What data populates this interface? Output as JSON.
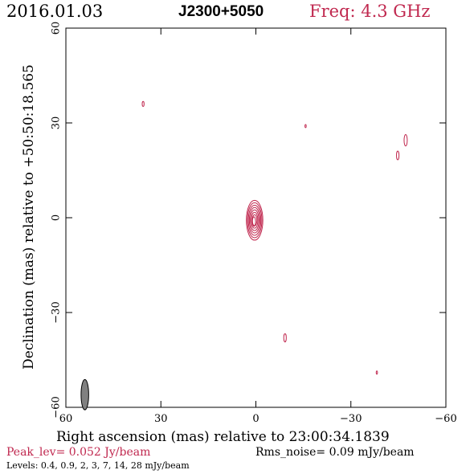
{
  "header": {
    "date": "2016.01.03",
    "source": "J2300+5050",
    "freq": "Freq: 4.3 GHz"
  },
  "footer": {
    "peak": "Peak_lev=  0.052 Jy/beam",
    "rms": "Rms_noise= 0.09  mJy/beam",
    "levels": "Levels: 0.4,  0.9,    2,    3,    7,   14,   28 mJy/beam"
  },
  "colors": {
    "accent": "#c0284f",
    "beam_fill": "#808080",
    "axis": "#000000"
  },
  "chart_data": {
    "type": "contour",
    "title": "J2300+5050",
    "xlabel": "Right ascension (mas) relative to 23:00:34.1839",
    "ylabel": "Declination (mas) relative to +50:50:18.565",
    "xlim": [
      60,
      -60
    ],
    "ylim": [
      -60,
      60
    ],
    "x_ticks": [
      60,
      30,
      0,
      -30,
      -60
    ],
    "y_ticks": [
      -60,
      -30,
      0,
      30,
      60
    ],
    "x_tick_labels": [
      "60",
      "30",
      "0",
      "−30",
      "−60"
    ],
    "y_tick_labels": [
      "−60",
      "−30",
      "0",
      "30",
      "60"
    ],
    "contour_levels_mJy": [
      0.4,
      0.9,
      2,
      3,
      7,
      14,
      28
    ],
    "components": [
      {
        "x": 0.4,
        "y": -0.8,
        "rx": 2.6,
        "ry": 6.3,
        "levels": 7
      },
      {
        "x": 0.6,
        "y": -1.2,
        "rx": 0.5,
        "ry": 1.5,
        "levels": 1
      },
      {
        "x": 35.6,
        "y": 36.0,
        "rx": 0.3,
        "ry": 0.8,
        "levels": 1
      },
      {
        "x": -15.7,
        "y": 29.0,
        "rx": 0.2,
        "ry": 0.5,
        "levels": 1
      },
      {
        "x": -47.3,
        "y": 24.5,
        "rx": 0.5,
        "ry": 1.8,
        "levels": 1
      },
      {
        "x": -44.8,
        "y": 19.7,
        "rx": 0.4,
        "ry": 1.4,
        "levels": 1
      },
      {
        "x": -9.2,
        "y": -38.0,
        "rx": 0.4,
        "ry": 1.3,
        "levels": 1
      },
      {
        "x": -38.2,
        "y": -49.0,
        "rx": 0.15,
        "ry": 0.5,
        "levels": 1
      }
    ],
    "beam": {
      "x": 54.0,
      "y": -56.0,
      "rx": 1.2,
      "ry": 4.8
    }
  }
}
